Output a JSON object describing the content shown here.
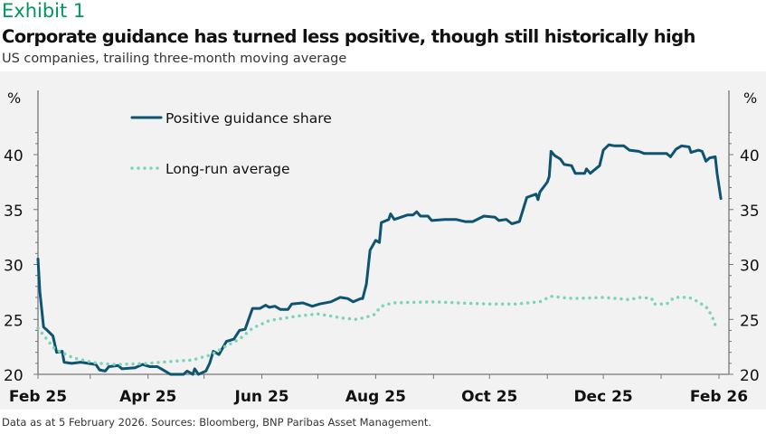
{
  "header": {
    "exhibit": "Exhibit 1",
    "title": "Corporate guidance has turned less positive, though still historically high",
    "subtitle": "US companies, trailing three-month moving average"
  },
  "footer": {
    "source": "Data as at 5 February 2026. Sources: Bloomberg, BNP Paribas Asset Management."
  },
  "chart_data": {
    "type": "line",
    "title": "",
    "xlabel": "",
    "ylabel": "%",
    "ylabel_right": "%",
    "xlim": [
      "2025-02-01",
      "2026-02-01"
    ],
    "ylim": [
      20,
      42.5
    ],
    "yticks": [
      20,
      25,
      30,
      35,
      40
    ],
    "xtick_labels": [
      {
        "date": "2025-02-01",
        "label": "Feb 25"
      },
      {
        "date": "2025-04-01",
        "label": "Apr 25"
      },
      {
        "date": "2025-06-01",
        "label": "Jun 25"
      },
      {
        "date": "2025-08-01",
        "label": "Aug 25"
      },
      {
        "date": "2025-10-01",
        "label": "Oct 25"
      },
      {
        "date": "2025-12-01",
        "label": "Dec 25"
      },
      {
        "date": "2026-02-01",
        "label": "Feb 26"
      }
    ],
    "grid": false,
    "legend_position": "top-left",
    "series": [
      {
        "name": "Positive guidance share",
        "style": "solid",
        "color": "#0e5470",
        "points": [
          [
            "2025-02-01",
            30.5
          ],
          [
            "2025-02-02",
            27.5
          ],
          [
            "2025-02-04",
            24.3
          ],
          [
            "2025-02-06",
            24.0
          ],
          [
            "2025-02-09",
            23.5
          ],
          [
            "2025-02-11",
            22.0
          ],
          [
            "2025-02-14",
            22.1
          ],
          [
            "2025-02-15",
            21.1
          ],
          [
            "2025-02-19",
            21.0
          ],
          [
            "2025-02-24",
            21.1
          ],
          [
            "2025-03-04",
            20.9
          ],
          [
            "2025-03-06",
            20.4
          ],
          [
            "2025-03-09",
            20.3
          ],
          [
            "2025-03-11",
            20.7
          ],
          [
            "2025-03-16",
            20.8
          ],
          [
            "2025-03-18",
            20.5
          ],
          [
            "2025-03-25",
            20.6
          ],
          [
            "2025-03-29",
            20.9
          ],
          [
            "2025-04-02",
            20.7
          ],
          [
            "2025-04-06",
            20.7
          ],
          [
            "2025-04-09",
            20.4
          ],
          [
            "2025-04-13",
            20.0
          ],
          [
            "2025-04-20",
            20.0
          ],
          [
            "2025-04-22",
            20.3
          ],
          [
            "2025-04-25",
            20.0
          ],
          [
            "2025-04-26",
            20.5
          ],
          [
            "2025-04-28",
            20.0
          ],
          [
            "2025-05-02",
            20.3
          ],
          [
            "2025-05-04",
            21.0
          ],
          [
            "2025-05-06",
            22.1
          ],
          [
            "2025-05-09",
            21.8
          ],
          [
            "2025-05-13",
            23.0
          ],
          [
            "2025-05-17",
            23.2
          ],
          [
            "2025-05-20",
            24.0
          ],
          [
            "2025-05-23",
            24.1
          ],
          [
            "2025-05-27",
            26.0
          ],
          [
            "2025-05-31",
            26.0
          ],
          [
            "2025-06-03",
            26.3
          ],
          [
            "2025-06-05",
            26.1
          ],
          [
            "2025-06-08",
            26.2
          ],
          [
            "2025-06-11",
            25.9
          ],
          [
            "2025-06-15",
            25.9
          ],
          [
            "2025-06-17",
            26.4
          ],
          [
            "2025-06-23",
            26.5
          ],
          [
            "2025-06-28",
            26.2
          ],
          [
            "2025-07-02",
            26.4
          ],
          [
            "2025-07-08",
            26.6
          ],
          [
            "2025-07-13",
            27.0
          ],
          [
            "2025-07-17",
            26.9
          ],
          [
            "2025-07-20",
            26.6
          ],
          [
            "2025-07-24",
            26.9
          ],
          [
            "2025-07-25",
            26.9
          ],
          [
            "2025-07-27",
            28.2
          ],
          [
            "2025-07-29",
            31.3
          ],
          [
            "2025-08-01",
            32.2
          ],
          [
            "2025-08-03",
            32.0
          ],
          [
            "2025-08-04",
            33.8
          ],
          [
            "2025-08-08",
            34.1
          ],
          [
            "2025-08-09",
            34.6
          ],
          [
            "2025-08-11",
            34.1
          ],
          [
            "2025-08-18",
            34.5
          ],
          [
            "2025-08-21",
            34.5
          ],
          [
            "2025-08-23",
            34.8
          ],
          [
            "2025-08-25",
            34.4
          ],
          [
            "2025-08-29",
            34.4
          ],
          [
            "2025-08-31",
            34.0
          ],
          [
            "2025-09-07",
            34.1
          ],
          [
            "2025-09-13",
            34.1
          ],
          [
            "2025-09-18",
            33.9
          ],
          [
            "2025-09-22",
            33.9
          ],
          [
            "2025-09-28",
            34.4
          ],
          [
            "2025-10-04",
            34.3
          ],
          [
            "2025-10-06",
            34.0
          ],
          [
            "2025-10-10",
            34.1
          ],
          [
            "2025-10-13",
            33.7
          ],
          [
            "2025-10-17",
            33.9
          ],
          [
            "2025-10-21",
            36.1
          ],
          [
            "2025-10-26",
            36.4
          ],
          [
            "2025-10-27",
            35.9
          ],
          [
            "2025-10-28",
            36.6
          ],
          [
            "2025-11-01",
            37.5
          ],
          [
            "2025-11-02",
            38.0
          ],
          [
            "2025-11-03",
            40.3
          ],
          [
            "2025-11-05",
            39.9
          ],
          [
            "2025-11-08",
            39.6
          ],
          [
            "2025-11-10",
            39.1
          ],
          [
            "2025-11-14",
            39.0
          ],
          [
            "2025-11-16",
            38.3
          ],
          [
            "2025-11-21",
            38.3
          ],
          [
            "2025-11-22",
            38.7
          ],
          [
            "2025-11-24",
            38.3
          ],
          [
            "2025-11-29",
            39.0
          ],
          [
            "2025-12-01",
            40.4
          ],
          [
            "2025-12-04",
            40.9
          ],
          [
            "2025-12-07",
            40.8
          ],
          [
            "2025-12-12",
            40.8
          ],
          [
            "2025-12-15",
            40.4
          ],
          [
            "2025-12-20",
            40.3
          ],
          [
            "2025-12-23",
            40.1
          ],
          [
            "2025-12-29",
            40.1
          ],
          [
            "2026-01-04",
            40.1
          ],
          [
            "2026-01-06",
            39.8
          ],
          [
            "2026-01-09",
            40.5
          ],
          [
            "2026-01-12",
            40.8
          ],
          [
            "2026-01-16",
            40.7
          ],
          [
            "2026-01-17",
            40.2
          ],
          [
            "2026-01-21",
            40.4
          ],
          [
            "2026-01-23",
            40.3
          ],
          [
            "2026-01-25",
            39.4
          ],
          [
            "2026-01-27",
            39.7
          ],
          [
            "2026-01-30",
            39.8
          ],
          [
            "2026-01-31",
            38.3
          ],
          [
            "2026-02-02",
            36.0
          ]
        ]
      },
      {
        "name": "Long-run average",
        "style": "dotted",
        "color": "#7dd3ba",
        "points": [
          [
            "2025-02-01",
            24.2
          ],
          [
            "2025-02-10",
            22.3
          ],
          [
            "2025-02-20",
            21.5
          ],
          [
            "2025-03-05",
            21.0
          ],
          [
            "2025-03-15",
            20.9
          ],
          [
            "2025-04-01",
            21.0
          ],
          [
            "2025-04-15",
            21.2
          ],
          [
            "2025-04-25",
            21.3
          ],
          [
            "2025-05-05",
            21.8
          ],
          [
            "2025-05-12",
            22.5
          ],
          [
            "2025-05-20",
            23.2
          ],
          [
            "2025-05-27",
            24.2
          ],
          [
            "2025-06-05",
            24.9
          ],
          [
            "2025-06-20",
            25.3
          ],
          [
            "2025-07-01",
            25.5
          ],
          [
            "2025-07-15",
            25.1
          ],
          [
            "2025-07-22",
            25.0
          ],
          [
            "2025-07-31",
            25.4
          ],
          [
            "2025-08-04",
            26.2
          ],
          [
            "2025-08-10",
            26.5
          ],
          [
            "2025-09-01",
            26.6
          ],
          [
            "2025-09-15",
            26.5
          ],
          [
            "2025-10-01",
            26.4
          ],
          [
            "2025-10-15",
            26.4
          ],
          [
            "2025-10-28",
            26.6
          ],
          [
            "2025-11-03",
            27.1
          ],
          [
            "2025-11-15",
            26.9
          ],
          [
            "2025-12-01",
            27.0
          ],
          [
            "2025-12-15",
            26.8
          ],
          [
            "2025-12-21",
            27.0
          ],
          [
            "2025-12-27",
            26.9
          ],
          [
            "2025-12-28",
            26.4
          ],
          [
            "2026-01-04",
            26.4
          ],
          [
            "2026-01-08",
            27.0
          ],
          [
            "2026-01-16",
            27.0
          ],
          [
            "2026-01-21",
            26.6
          ],
          [
            "2026-01-26",
            26.0
          ],
          [
            "2026-01-29",
            25.0
          ],
          [
            "2026-01-31",
            24.0
          ]
        ]
      }
    ]
  }
}
